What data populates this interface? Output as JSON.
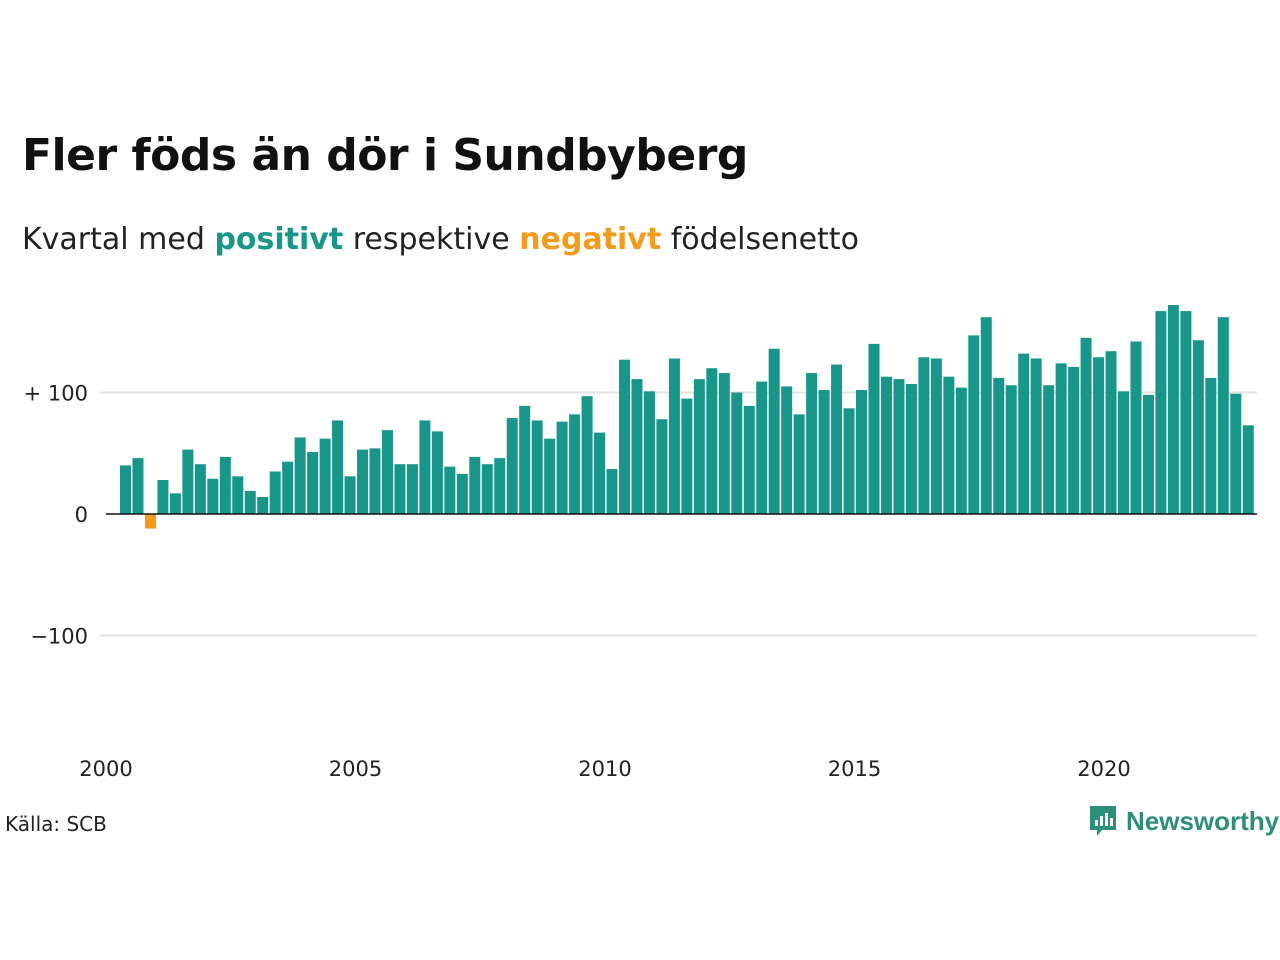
{
  "title": "Fler föds än dör i Sundbyberg",
  "subtitle": {
    "prefix": "Kvartal med",
    "positive": "positivt",
    "middle": "respektive",
    "negative": "negativt",
    "suffix": "födelsenetto"
  },
  "source": "Källa: SCB",
  "brand": {
    "name": "Newsworthy",
    "icon": "newsworthy-logo-icon"
  },
  "colors": {
    "positive": "#17968a",
    "negative": "#f39c1c",
    "grid": "#e3e3e3",
    "zero_line": "#111111"
  },
  "chart_data": {
    "type": "bar",
    "title": "Fler föds än dör i Sundbyberg",
    "subtitle": "Kvartal med positivt respektive negativt födelsenetto",
    "x_tick_labels": [
      "2000",
      "2005",
      "2010",
      "2015",
      "2020"
    ],
    "y_tick_labels": [
      "+ 100",
      "0",
      "−100"
    ],
    "y_ticks": [
      100,
      0,
      -100
    ],
    "ylim": [
      -175,
      175
    ],
    "first_quarter": "2000 Q1",
    "series": [
      {
        "values": [
          40,
          46,
          -12,
          28,
          17,
          53,
          41,
          29,
          47,
          31,
          19,
          14,
          35,
          43,
          63,
          51,
          62,
          77,
          31,
          53,
          54,
          69,
          41,
          41,
          77,
          68,
          39,
          33,
          47,
          41,
          46,
          79,
          89,
          77,
          62,
          76,
          82,
          97,
          67,
          37,
          127,
          111,
          101,
          78,
          128,
          95,
          111,
          120,
          116,
          100,
          89,
          109,
          136,
          105,
          82,
          116,
          102,
          123,
          87,
          102,
          140,
          113,
          111,
          107,
          129,
          128,
          113,
          104,
          147,
          162,
          112,
          106,
          132,
          128,
          106,
          124,
          121,
          145,
          129,
          134,
          101,
          142,
          98,
          167,
          172,
          167,
          143,
          112,
          162,
          99,
          73
        ]
      }
    ],
    "grid": true
  }
}
